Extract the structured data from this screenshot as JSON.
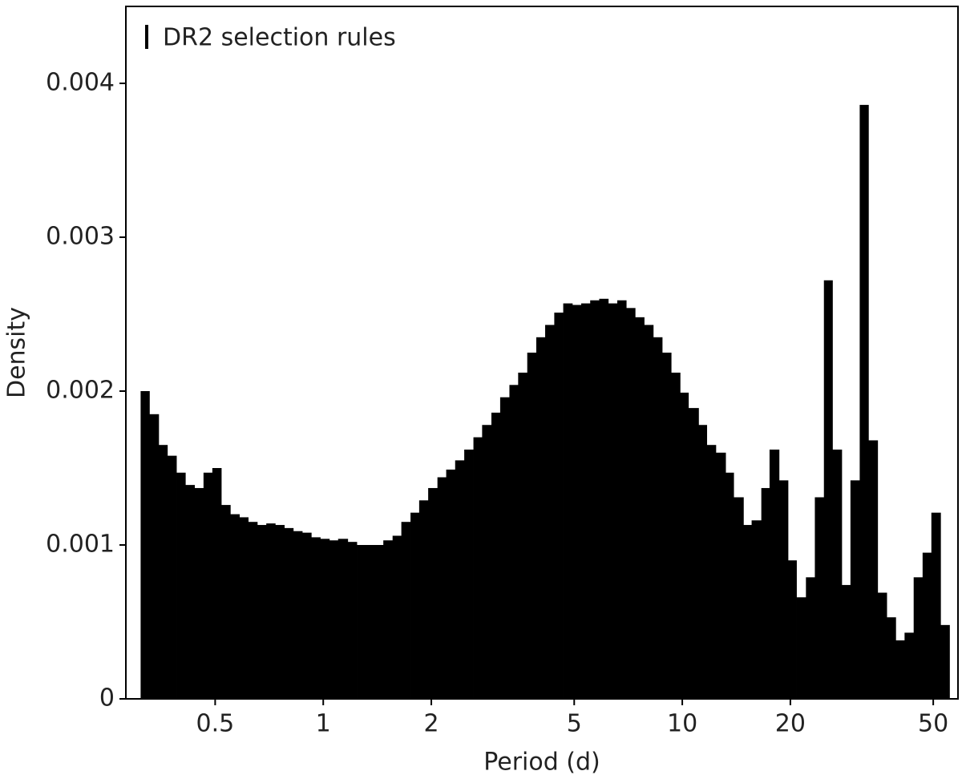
{
  "chart_data": {
    "type": "histogram",
    "x_label": "Period (d)",
    "y_label": "Density",
    "xscale": "log",
    "legend": "upper left",
    "xlim": [
      0.282,
      58.6
    ],
    "ylim": [
      0,
      0.0045
    ],
    "xticks": [
      0.5,
      1,
      2,
      5,
      10,
      20,
      50
    ],
    "yticks": [
      0,
      0.001,
      0.002,
      0.003,
      0.004
    ],
    "bins": [
      0.31,
      0.328,
      0.348,
      0.368,
      0.39,
      0.413,
      0.438,
      0.464,
      0.491,
      0.52,
      0.551,
      0.584,
      0.618,
      0.655,
      0.694,
      0.735,
      0.779,
      0.825,
      0.874,
      0.926,
      0.981,
      1.04,
      1.1,
      1.17,
      1.24,
      1.31,
      1.39,
      1.47,
      1.56,
      1.65,
      1.75,
      1.85,
      1.96,
      2.08,
      2.2,
      2.33,
      2.47,
      2.62,
      2.77,
      2.94,
      3.11,
      3.3,
      3.49,
      3.7,
      3.92,
      4.15,
      4.4,
      4.66,
      4.94,
      5.23,
      5.54,
      5.87,
      6.22,
      6.59,
      6.98,
      7.39,
      7.83,
      8.3,
      8.79,
      9.31,
      9.86,
      10.4,
      11.1,
      11.7,
      12.4,
      13.2,
      13.9,
      14.8,
      15.6,
      16.6,
      17.5,
      18.6,
      19.7,
      20.8,
      22.1,
      23.4,
      24.8,
      26.2,
      27.8,
      29.4,
      31.2,
      33.0,
      35.0,
      37.1,
      39.3,
      41.6,
      44.1,
      46.7,
      49.4,
      52.4,
      55.5
    ],
    "series": [
      {
        "name": "DR2 selection rules",
        "color": "#000000",
        "values": [
          0.002,
          0.00185,
          0.00165,
          0.00158,
          0.00147,
          0.00139,
          0.00137,
          0.00147,
          0.0015,
          0.00126,
          0.0012,
          0.00118,
          0.00115,
          0.00113,
          0.00114,
          0.00113,
          0.00111,
          0.00109,
          0.00108,
          0.00105,
          0.00104,
          0.00103,
          0.00104,
          0.00102,
          0.001,
          0.001,
          0.001,
          0.00103,
          0.00106,
          0.00115,
          0.00121,
          0.00129,
          0.00137,
          0.00144,
          0.00149,
          0.00155,
          0.00162,
          0.0017,
          0.00178,
          0.00186,
          0.00196,
          0.00204,
          0.00212,
          0.00225,
          0.00235,
          0.00243,
          0.00251,
          0.00257,
          0.00256,
          0.00257,
          0.00259,
          0.0026,
          0.00257,
          0.00259,
          0.00254,
          0.00248,
          0.00243,
          0.00235,
          0.00225,
          0.00212,
          0.00199,
          0.00189,
          0.00178,
          0.00165,
          0.0016,
          0.00147,
          0.00131,
          0.00113,
          0.00116,
          0.00137,
          0.00162,
          0.00142,
          0.0009,
          0.00066,
          0.00079,
          0.00131,
          0.00272,
          0.00162,
          0.00074,
          0.00142,
          0.00386,
          0.00168,
          0.00069,
          0.00053,
          0.00038,
          0.00043,
          0.00079,
          0.00095,
          0.00121,
          0.00048
        ]
      }
    ]
  }
}
